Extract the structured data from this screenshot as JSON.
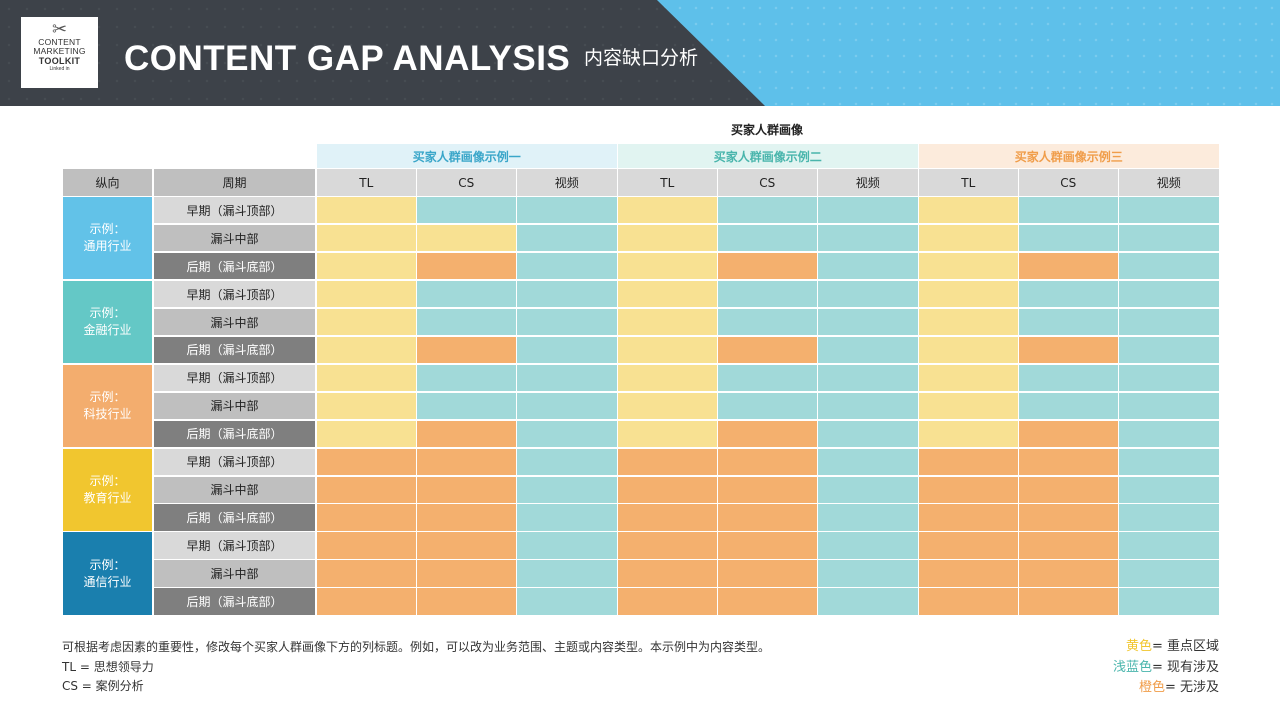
{
  "header": {
    "logo_line1": "CONTENT",
    "logo_line2": "MARKETING",
    "logo_line3": "TOOLKIT",
    "logo_line4": "Linked in",
    "title": "CONTENT GAP ANALYSIS",
    "subtitle": "内容缺口分析"
  },
  "table": {
    "caption": "买家人群画像",
    "personas": [
      {
        "label": "买家人群画像示例一",
        "bg": "#e0f2f8",
        "color": "#3aa6c9"
      },
      {
        "label": "买家人群画像示例二",
        "bg": "#e1f4f1",
        "color": "#49b5ac"
      },
      {
        "label": "买家人群画像示例三",
        "bg": "#fcebdc",
        "color": "#f09d4a"
      }
    ],
    "row_header_1": "纵向",
    "row_header_2": "周期",
    "columns": [
      "TL",
      "CS",
      "视频",
      "TL",
      "CS",
      "视频",
      "TL",
      "CS",
      "视频"
    ],
    "industries": [
      {
        "label": "示例：\n通用行业",
        "color": "#62c2e8"
      },
      {
        "label": "示例：\n金融行业",
        "color": "#64c8c6"
      },
      {
        "label": "示例：\n科技行业",
        "color": "#f3ad6e"
      },
      {
        "label": "示例：\n教育行业",
        "color": "#f1c62f"
      },
      {
        "label": "示例：\n通信行业",
        "color": "#1a7fae"
      }
    ],
    "stages": [
      {
        "label": "早期（漏斗顶部）",
        "bg": "#d9d9d9",
        "dark": false
      },
      {
        "label": "漏斗中部",
        "bg": "#bfbfbf",
        "dark": false
      },
      {
        "label": "后期（漏斗底部）",
        "bg": "#7f7f7f",
        "dark": true
      }
    ],
    "palette": {
      "Y": "#f8e192",
      "B": "#a1d9d9",
      "O": "#f4b06e"
    },
    "cells": [
      "YBBYBBYBB",
      "YYBYBBYBB",
      "YOBYOBYOB",
      "YBBYBBYBB",
      "YBBYBBYBB",
      "YOBYOBYOB",
      "YBBYBBYBB",
      "YBBYBBYBB",
      "YOBYOBYOB",
      "OOBOOBOOB",
      "OOBOOBOOB",
      "OOBOOBOOB",
      "OOBOOBOOB",
      "OOBOOBOOB",
      "OOBOOBOOB"
    ]
  },
  "notes": {
    "line1": "可根据考虑因素的重要性，修改每个买家人群画像下方的列标题。例如，可以改为业务范围、主题或内容类型。本示例中为内容类型。",
    "line2": "TL = 思想领导力",
    "line3": "CS = 案例分析"
  },
  "legend": [
    {
      "color_word": "黄色",
      "rest": "= 重点区域",
      "color": "#f1c62f"
    },
    {
      "color_word": "浅蓝色",
      "rest": "= 现有涉及",
      "color": "#49b5ac"
    },
    {
      "color_word": "橙色",
      "rest": "= 无涉及",
      "color": "#f09d4a"
    }
  ]
}
